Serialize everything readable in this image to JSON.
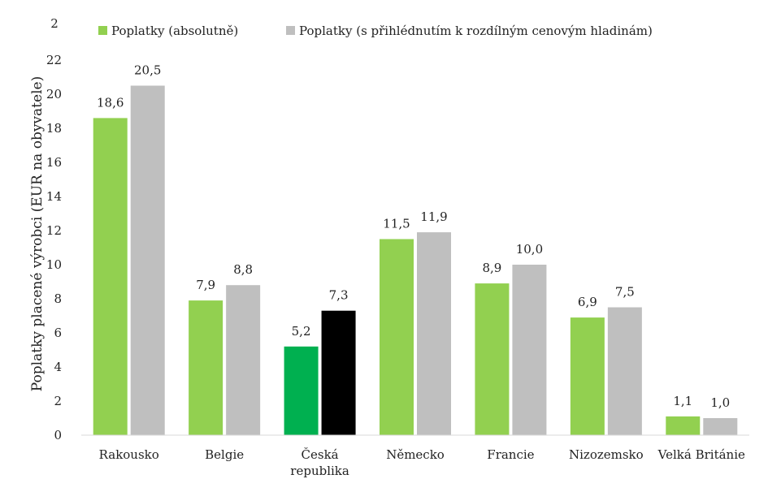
{
  "chart_data": {
    "type": "bar",
    "title": "",
    "xlabel": "",
    "ylabel": "Poplatky placené výrobci (EUR na obyvatele)",
    "ylim": [
      0,
      22
    ],
    "yticks": [
      0,
      2,
      4,
      6,
      8,
      10,
      12,
      14,
      16,
      18,
      20,
      22
    ],
    "grid": false,
    "legend_position": "top",
    "categories": [
      "Rakousko",
      "Belgie",
      "Česká republika",
      "Německo",
      "Francie",
      "Nizozemsko",
      "Velká Británie"
    ],
    "category_lines": [
      [
        "Rakousko"
      ],
      [
        "Belgie"
      ],
      [
        "Česká",
        "republika"
      ],
      [
        "Německo"
      ],
      [
        "Francie"
      ],
      [
        "Nizozemsko"
      ],
      [
        "Velká Británie"
      ]
    ],
    "series": [
      {
        "name": "Poplatky (absolutně)",
        "color": "#92d050",
        "values": [
          18.6,
          7.9,
          5.2,
          11.5,
          8.9,
          6.9,
          1.1
        ],
        "labels": [
          "18,6",
          "7,9",
          "5,2",
          "11,5",
          "8,9",
          "6,9",
          "1,1"
        ]
      },
      {
        "name": "Poplatky (s přihlédnutím k rozdílným cenovým hladinám)",
        "color": "#bfbfbf",
        "values": [
          20.5,
          8.8,
          7.3,
          11.9,
          10.0,
          7.5,
          1.0
        ],
        "labels": [
          "20,5",
          "8,8",
          "7,3",
          "11,9",
          "10,0",
          "7,5",
          "1,0"
        ]
      }
    ],
    "highlight": {
      "category_index": 2,
      "colors": [
        "#00b050",
        "#000000"
      ]
    },
    "stray_tick_text": "2"
  }
}
